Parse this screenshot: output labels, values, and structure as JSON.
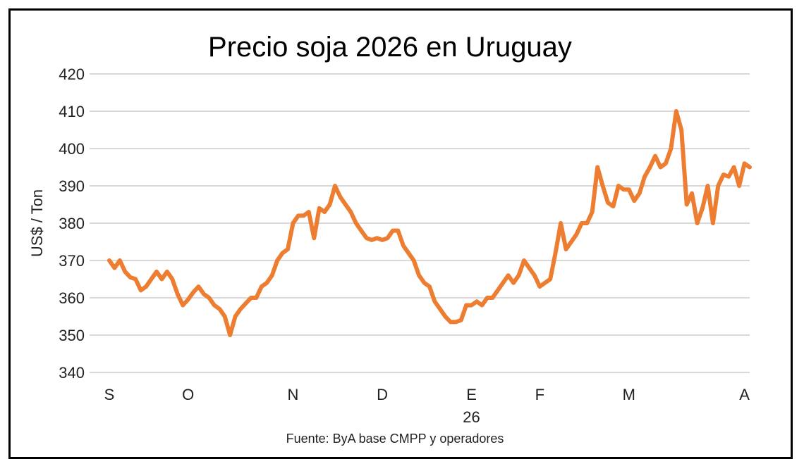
{
  "chart_data": {
    "type": "line",
    "title": "Precio soja 2026 en Uruguay",
    "ylabel": "US$ / Ton",
    "xlabel": "",
    "year_label": "26",
    "source": "Fuente: ByA  base  CMPP y operadores",
    "ylim": [
      340,
      420
    ],
    "yticks": [
      340,
      350,
      360,
      370,
      380,
      390,
      400,
      410,
      420
    ],
    "grid": true,
    "legend": "none",
    "line_color": "#ED7D31",
    "x_ticks": [
      {
        "label": "S",
        "index": 0
      },
      {
        "label": "O",
        "index": 15
      },
      {
        "label": "N",
        "index": 35
      },
      {
        "label": "D",
        "index": 52
      },
      {
        "label": "E",
        "index": 69
      },
      {
        "label": "F",
        "index": 82
      },
      {
        "label": "M",
        "index": 99
      },
      {
        "label": "A",
        "index": 121
      }
    ],
    "values": [
      370,
      368,
      370,
      367,
      365.5,
      365,
      362,
      363,
      365,
      367,
      365,
      367,
      365,
      361,
      358,
      359.5,
      361.5,
      363,
      361,
      360,
      358,
      357,
      355,
      350,
      355,
      357,
      358.5,
      360,
      360,
      363,
      364,
      366,
      370,
      372,
      373,
      380,
      382,
      382,
      383,
      376,
      384,
      383,
      385,
      390,
      387,
      385,
      383,
      380,
      378,
      376,
      375.5,
      376,
      375.5,
      376,
      378,
      378,
      374,
      372,
      370,
      366,
      364,
      363,
      359,
      357,
      355,
      353.5,
      353.5,
      354,
      358,
      358,
      359,
      358,
      360,
      360,
      362,
      364,
      366,
      364,
      366,
      370,
      368,
      366,
      363,
      364,
      365,
      372,
      380,
      373,
      375,
      377,
      380,
      380,
      383,
      395,
      390,
      385.5,
      384.5,
      390,
      389,
      389,
      386,
      388,
      392.5,
      395,
      398,
      395,
      396,
      400,
      410,
      405,
      385,
      388,
      380,
      384,
      390,
      380,
      390,
      393,
      392.5,
      395,
      390,
      396,
      395
    ]
  }
}
